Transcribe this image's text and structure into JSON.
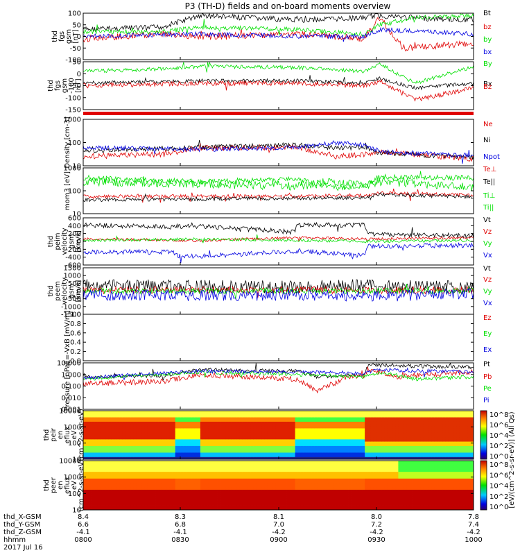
{
  "title": "P3 (TH-D) fields and on-board moments overview",
  "date_label": "2017 Jul 16",
  "colors": {
    "black": "#000000",
    "red": "#e00000",
    "green": "#00e000",
    "blue": "#0000e0"
  },
  "footer": {
    "rows": [
      {
        "label": "thd_X-GSM",
        "values": [
          "8.4",
          "8.3",
          "8.1",
          "8.0",
          "7.8"
        ]
      },
      {
        "label": "thd_Y-GSM",
        "values": [
          "6.6",
          "6.8",
          "7.0",
          "7.2",
          "7.4"
        ]
      },
      {
        "label": "thd_Z-GSM",
        "values": [
          "-4.1",
          "-4.1",
          "-4.2",
          "-4.2",
          "-4.2"
        ]
      },
      {
        "label": "hhmm",
        "values": [
          "0800",
          "0830",
          "0900",
          "0930",
          "1000"
        ]
      }
    ]
  },
  "colorbars": [
    {
      "labels": [
        "10^8",
        "10^6",
        "10^4",
        "10^2",
        "10^0"
      ]
    },
    {
      "labels": [
        "10^8",
        "10^6",
        "10^4",
        "10^2",
        "10^0"
      ]
    }
  ],
  "colorbar_title": "[eV/(cm^2-s-sr-eV)] (All Qs)",
  "chart_data": [
    {
      "type": "line",
      "ylabel": "thd fgs gsm [nT]",
      "ylim": [
        -100,
        100
      ],
      "yticks": [
        "100",
        "50",
        "0",
        "-50",
        "-100"
      ],
      "series": [
        {
          "name": "Bt",
          "color": "#000000"
        },
        {
          "name": "bz",
          "color": "#e00000"
        },
        {
          "name": "by",
          "color": "#00e000"
        },
        {
          "name": "bx",
          "color": "#0000e0"
        }
      ]
    },
    {
      "type": "line",
      "ylabel": "thd fgs gsm -180 [nT]",
      "ylim": [
        -180,
        50
      ],
      "yticks": [
        "50",
        "0",
        "-50",
        "-100",
        "-150"
      ],
      "series": [
        {
          "name": "By",
          "color": "#00e000"
        },
        {
          "name": "Bx",
          "color": "#000000"
        },
        {
          "name": "Bz",
          "color": "#e00000"
        }
      ]
    },
    {
      "type": "line",
      "ylabel": "Density [cm-3]",
      "ylim": [
        0.15,
        1.4
      ],
      "log": true,
      "yticks": [
        "1000",
        "100",
        "10"
      ],
      "series": [
        {
          "name": "Ne",
          "color": "#e00000"
        },
        {
          "name": "Ni",
          "color": "#000000"
        },
        {
          "name": "Npot",
          "color": "#0000e0"
        }
      ]
    },
    {
      "type": "line",
      "ylabel": "mom3 [eV]",
      "log": true,
      "yticks": [
        "1000",
        "100",
        "10"
      ],
      "series": [
        {
          "name": "Te⊥",
          "color": "#e00000"
        },
        {
          "name": "Te||",
          "color": "#000000"
        },
        {
          "name": "Ti⊥",
          "color": "#00e000"
        },
        {
          "name": "Ti||",
          "color": "#00e000"
        }
      ]
    },
    {
      "type": "line",
      "ylabel": "thd peim velocity gsm [km/s]",
      "ylim": [
        -600,
        600
      ],
      "yticks": [
        "600",
        "400",
        "200",
        "0",
        "-200",
        "-400",
        "-600"
      ],
      "series": [
        {
          "name": "Vt",
          "color": "#000000"
        },
        {
          "name": "Vz",
          "color": "#e00000"
        },
        {
          "name": "Vy",
          "color": "#00e000"
        },
        {
          "name": "Vx",
          "color": "#0000e0"
        }
      ]
    },
    {
      "type": "line",
      "ylabel": "thd peem velocity gsm [km/s]",
      "ylim": [
        -1500,
        1500
      ],
      "yticks": [
        "1500",
        "1000",
        "500",
        "0",
        "-500",
        "-1000",
        "-1500"
      ],
      "series": [
        {
          "name": "Vt",
          "color": "#000000"
        },
        {
          "name": "Vz",
          "color": "#e00000"
        },
        {
          "name": "Vy",
          "color": "#00e000"
        },
        {
          "name": "Vx",
          "color": "#0000e0"
        }
      ]
    },
    {
      "type": "line",
      "ylabel": "E=-VxB [mV/m]",
      "ylim": [
        0,
        1
      ],
      "yticks": [
        "1.0",
        "0.8",
        "0.6",
        "0.4",
        "0.2",
        "0.0"
      ],
      "series": [
        {
          "name": "Ez",
          "color": "#e00000"
        },
        {
          "name": "Ey",
          "color": "#00e000"
        },
        {
          "name": "Ex",
          "color": "#0000e0"
        }
      ]
    },
    {
      "type": "line",
      "ylabel": "Pressure [nPa]",
      "log": true,
      "yticks": [
        "10.000",
        "1.000",
        "0.100",
        "0.010",
        "0.001"
      ],
      "series": [
        {
          "name": "Pt",
          "color": "#000000"
        },
        {
          "name": "Pb",
          "color": "#e00000"
        },
        {
          "name": "Pe",
          "color": "#00e000"
        },
        {
          "name": "Pi",
          "color": "#0000e0"
        }
      ]
    },
    {
      "type": "heatmap",
      "ylabel": "thd peir en eflux eV (cm^2-s-sr-eV)",
      "yticks": [
        "10000",
        "1000",
        "100",
        "10"
      ]
    },
    {
      "type": "heatmap",
      "ylabel": "thd peer en eflux eV (cm^2-s-sr-eV)",
      "yticks": [
        "10000",
        "1000",
        "100",
        "10"
      ]
    }
  ]
}
